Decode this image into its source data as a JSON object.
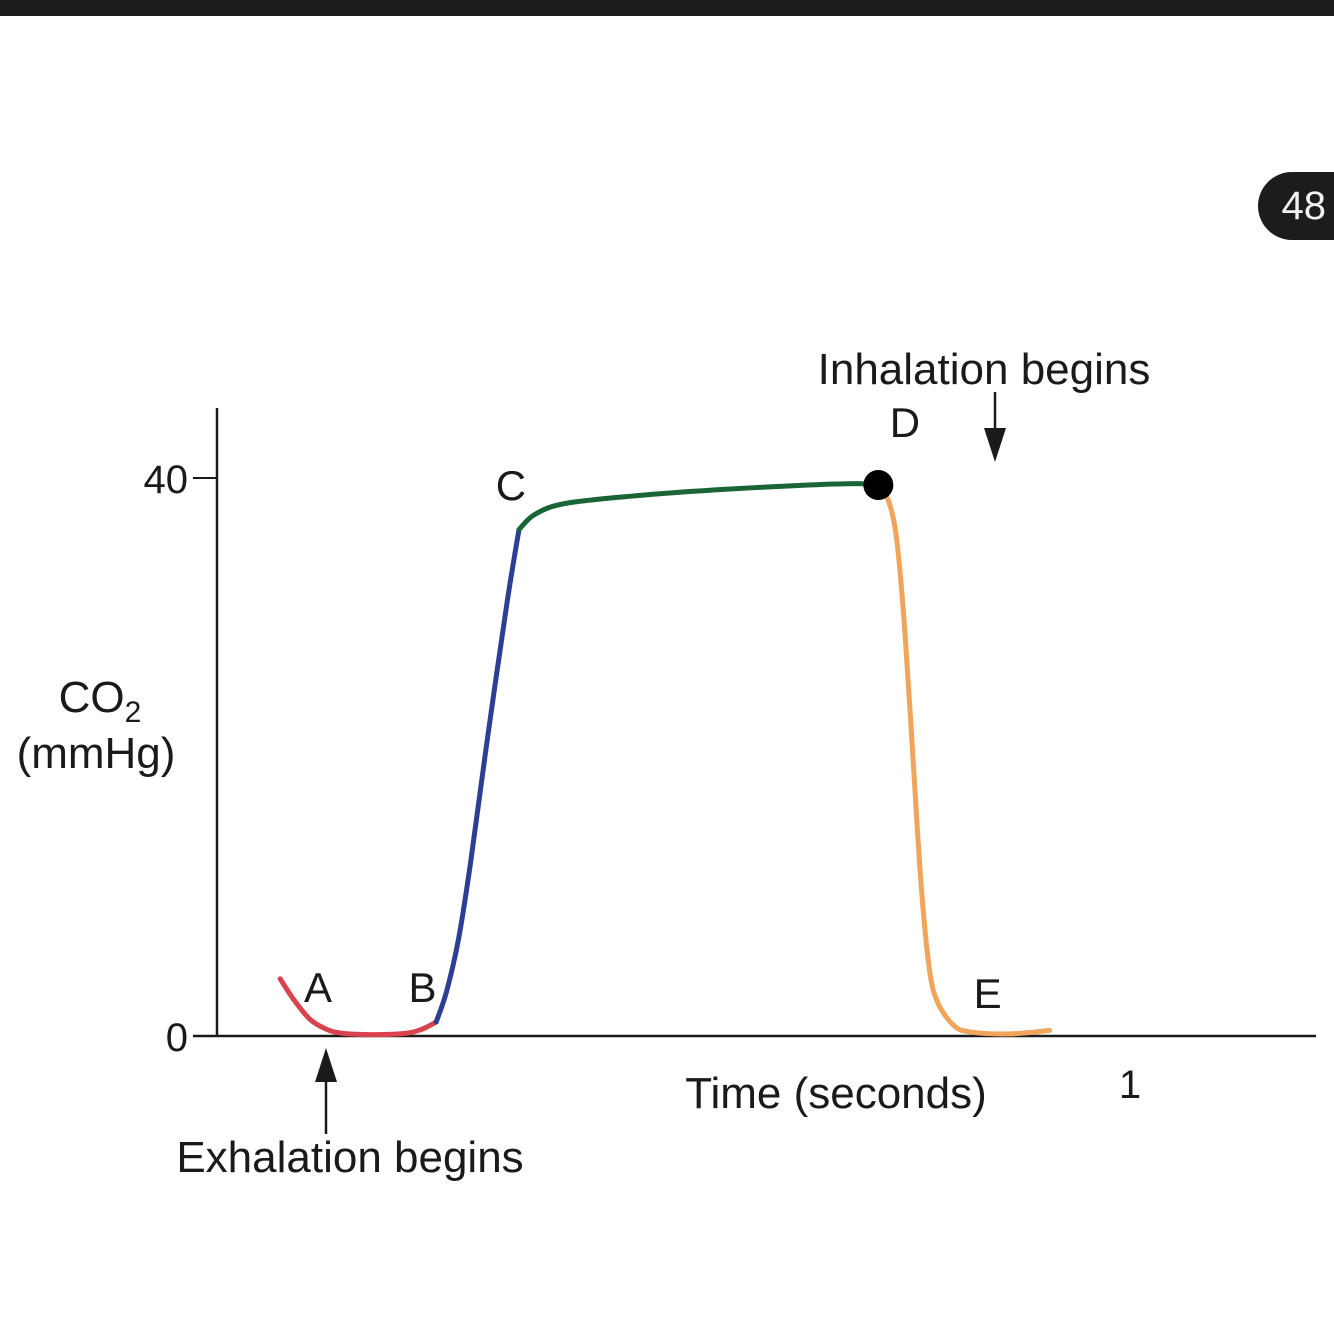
{
  "page": {
    "badge_number": "48"
  },
  "chart_data": {
    "type": "line",
    "title": "",
    "xlabel": "Time (seconds)",
    "ylabel": {
      "main": "CO",
      "subscript": "2",
      "unit": "(mmHg)"
    },
    "x_ticks": [
      {
        "value": 1,
        "label": "1"
      }
    ],
    "y_ticks": [
      {
        "value": 0,
        "label": "0"
      },
      {
        "value": 40,
        "label": "40"
      }
    ],
    "xlim": [
      -0.2,
      1.13
    ],
    "ylim": [
      0,
      45
    ],
    "grid": false,
    "series": [
      {
        "segment": "A-B",
        "color": "#d9434f",
        "points": [
          [
            -0.057,
            4.1
          ],
          [
            -0.04,
            2.6
          ],
          [
            -0.02,
            1.2
          ],
          [
            0.0,
            0.5
          ],
          [
            0.02,
            0.2
          ],
          [
            0.06,
            0.1
          ],
          [
            0.1,
            0.2
          ],
          [
            0.12,
            0.5
          ],
          [
            0.137,
            1.0
          ]
        ]
      },
      {
        "segment": "B-C",
        "color": "#2c3f94",
        "points": [
          [
            0.137,
            1.0
          ],
          [
            0.15,
            3.2
          ],
          [
            0.165,
            7.0
          ],
          [
            0.18,
            12.5
          ],
          [
            0.2,
            21.0
          ],
          [
            0.225,
            31.0
          ],
          [
            0.24,
            36.3
          ]
        ]
      },
      {
        "segment": "C-D",
        "color": "#1a6535",
        "points": [
          [
            0.24,
            36.3
          ],
          [
            0.26,
            37.4
          ],
          [
            0.3,
            38.2
          ],
          [
            0.4,
            38.8
          ],
          [
            0.5,
            39.2
          ],
          [
            0.6,
            39.5
          ],
          [
            0.66,
            39.6
          ],
          [
            0.687,
            39.5
          ]
        ]
      },
      {
        "segment": "D-E",
        "color": "#f0a55a",
        "points": [
          [
            0.687,
            39.5
          ],
          [
            0.7,
            38.3
          ],
          [
            0.71,
            35.5
          ],
          [
            0.72,
            29.0
          ],
          [
            0.73,
            20.0
          ],
          [
            0.74,
            11.0
          ],
          [
            0.75,
            5.0
          ],
          [
            0.76,
            2.5
          ],
          [
            0.78,
            0.8
          ],
          [
            0.8,
            0.3
          ],
          [
            0.85,
            0.15
          ],
          [
            0.9,
            0.4
          ]
        ]
      }
    ],
    "point_labels": [
      {
        "label": "A",
        "x": -0.01,
        "y": 3.5
      },
      {
        "label": "B",
        "x": 0.12,
        "y": 3.5
      },
      {
        "label": "C",
        "x": 0.23,
        "y": 39.5
      },
      {
        "label": "D",
        "x": 0.72,
        "y": 44.0
      },
      {
        "label": "E",
        "x": 0.823,
        "y": 3.1
      }
    ],
    "marker": {
      "x": 0.687,
      "y": 39.5,
      "color": "#000000"
    },
    "annotations": [
      {
        "text": "Exhalation begins",
        "x": 0.0,
        "position": "below-axis"
      },
      {
        "text": "Inhalation begins",
        "x": 0.687,
        "position": "above-curve"
      }
    ]
  }
}
